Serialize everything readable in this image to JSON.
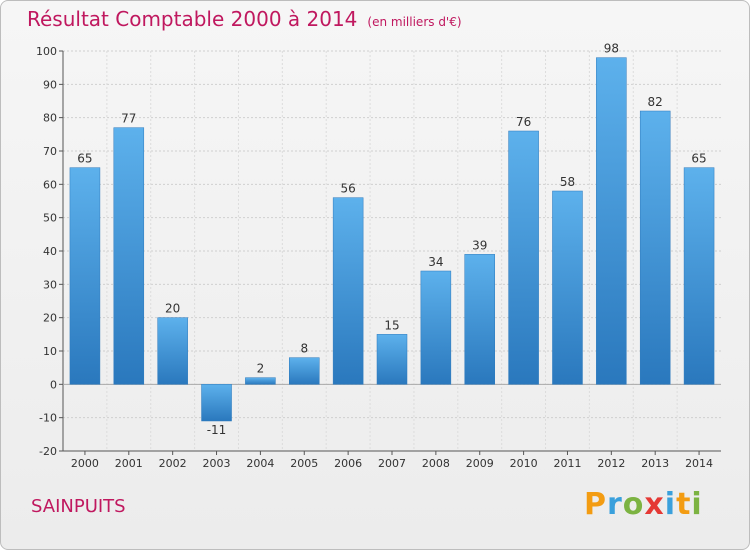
{
  "title": "Résultat Comptable 2000 à 2014",
  "subtitle": "(en milliers d'€)",
  "location": "SAINPUITS",
  "logo": {
    "letters": [
      "P",
      "r",
      "o",
      "x",
      "i",
      "t",
      "i"
    ],
    "colors": [
      "#f39c12",
      "#3aa0dc",
      "#7cb342",
      "#e53935",
      "#3aa0dc",
      "#f39c12",
      "#7cb342"
    ]
  },
  "chart_data": {
    "type": "bar",
    "categories": [
      "2000",
      "2001",
      "2002",
      "2003",
      "2004",
      "2005",
      "2006",
      "2007",
      "2008",
      "2009",
      "2010",
      "2011",
      "2012",
      "2013",
      "2014"
    ],
    "values": [
      65,
      77,
      20,
      -11,
      2,
      8,
      56,
      15,
      34,
      39,
      76,
      58,
      98,
      82,
      65
    ],
    "data_labels": [
      "65",
      "77",
      "20",
      "-11",
      "2",
      "8",
      "56",
      "15",
      "34",
      "39",
      "76",
      "58",
      "98",
      "82",
      "65"
    ],
    "ylim": [
      -20,
      100
    ],
    "yticks": [
      "-20",
      "-10",
      "0",
      "10",
      "20",
      "30",
      "40",
      "50",
      "60",
      "70",
      "80",
      "90",
      "100"
    ],
    "grid": true,
    "bar_color": "#3b8fd4"
  }
}
